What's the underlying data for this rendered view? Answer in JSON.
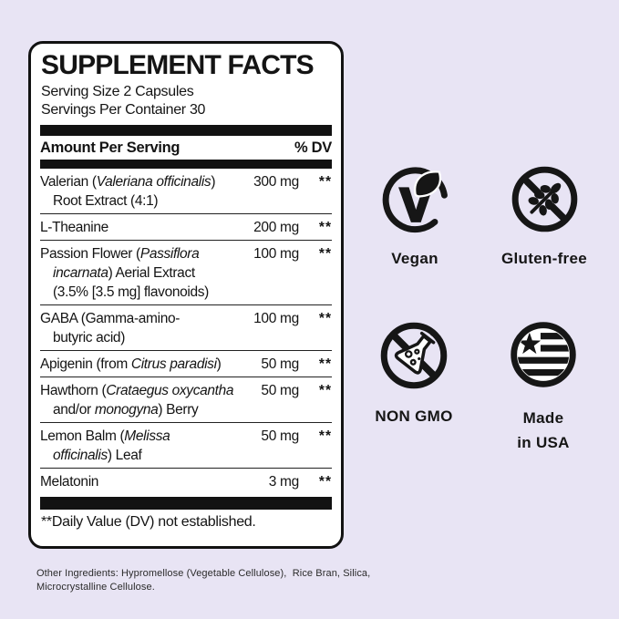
{
  "page": {
    "background_color": "#e8e4f4",
    "panel_background": "#ffffff",
    "ink_color": "#161616"
  },
  "panel": {
    "title": "SUPPLEMENT FACTS",
    "serving_size": "Serving Size 2 Capsules",
    "servings_per_container": "Servings Per Container 30",
    "header": {
      "amount": "Amount Per Serving",
      "dv": "% DV"
    },
    "rows": [
      {
        "amount": "300 mg",
        "dv": "**",
        "lines": [
          [
            {
              "t": "Valerian ("
            },
            {
              "t": "Valeriana officinalis",
              "i": true
            },
            {
              "t": ")"
            }
          ],
          [
            {
              "t": "Root Extract (4:1)"
            }
          ]
        ]
      },
      {
        "amount": "200 mg",
        "dv": "**",
        "lines": [
          [
            {
              "t": "L-Theanine"
            }
          ]
        ]
      },
      {
        "amount": "100 mg",
        "dv": "**",
        "lines": [
          [
            {
              "t": "Passion Flower ("
            },
            {
              "t": "Passiflora",
              "i": true
            }
          ],
          [
            {
              "t": "incarnata",
              "i": true
            },
            {
              "t": ") Aerial Extract"
            }
          ],
          [
            {
              "t": "(3.5% [3.5 mg] flavonoids)"
            }
          ]
        ]
      },
      {
        "amount": "100 mg",
        "dv": "**",
        "lines": [
          [
            {
              "t": "GABA (Gamma-amino-"
            }
          ],
          [
            {
              "t": "butyric acid)"
            }
          ]
        ]
      },
      {
        "amount": "50 mg",
        "dv": "**",
        "lines": [
          [
            {
              "t": "Apigenin (from "
            },
            {
              "t": "Citrus paradisi",
              "i": true
            },
            {
              "t": ")"
            }
          ]
        ]
      },
      {
        "amount": "50 mg",
        "dv": "**",
        "lines": [
          [
            {
              "t": "Hawthorn ("
            },
            {
              "t": "Crataegus oxycantha",
              "i": true
            }
          ],
          [
            {
              "t": "and/or "
            },
            {
              "t": "monogyna",
              "i": true
            },
            {
              "t": ") Berry"
            }
          ]
        ]
      },
      {
        "amount": "50 mg",
        "dv": "**",
        "lines": [
          [
            {
              "t": "Lemon Balm ("
            },
            {
              "t": "Melissa",
              "i": true
            }
          ],
          [
            {
              "t": "officinalis",
              "i": true
            },
            {
              "t": ") Leaf"
            }
          ]
        ]
      },
      {
        "amount": "3 mg",
        "dv": "**",
        "lines": [
          [
            {
              "t": "Melatonin"
            }
          ]
        ]
      }
    ],
    "footnote": "**Daily Value (DV) not established."
  },
  "other_ingredients": {
    "lines": [
      "Other Ingredients: Hypromellose (Vegetable Cellulose),  Rice Bran, Silica,",
      "Microcrystalline Cellulose."
    ]
  },
  "badges": [
    {
      "id": "vegan",
      "label": "Vegan"
    },
    {
      "id": "gluten-free",
      "label": "Gluten-free"
    },
    {
      "id": "non-gmo",
      "label": "NON GMO"
    },
    {
      "id": "made-in-usa",
      "label": "Made in USA",
      "label_lines": [
        "Made",
        "in USA"
      ]
    }
  ]
}
